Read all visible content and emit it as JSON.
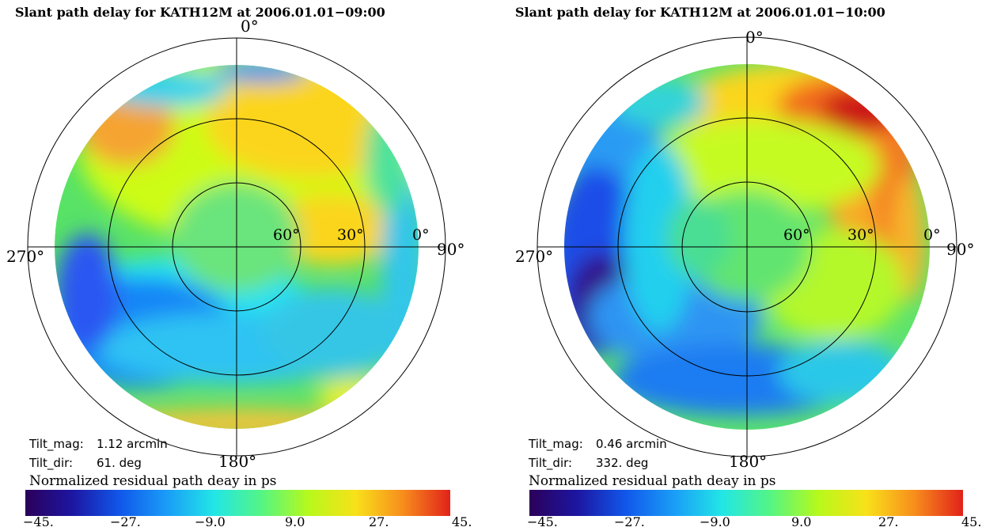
{
  "panels": [
    {
      "title": "Slant path delay for KATH12M   at 2006.01.01−09:00",
      "tilt_mag_label": "Tilt_mag:",
      "tilt_mag_value": "1.12 arcmin",
      "tilt_dir_label": "Tilt_dir:",
      "tilt_dir_value": "61.  deg",
      "colorbar_title": "Normalized residual path deay in ps"
    },
    {
      "title": "Slant path delay for KATH12M   at 2006.01.01−10:00",
      "tilt_mag_label": "Tilt_mag:",
      "tilt_mag_value": "0.46 arcmin",
      "tilt_dir_label": "Tilt_dir:",
      "tilt_dir_value": "332.  deg",
      "colorbar_title": "Normalized residual path deay in ps"
    }
  ],
  "chart_data": [
    {
      "type": "heatmap",
      "projection": "polar",
      "title": "Slant path delay for KATH12M   at 2006.01.01−09:00",
      "azimuth_labels": [
        "0°",
        "90°",
        "180°",
        "270°"
      ],
      "elevation_rings": [
        "60°",
        "30°",
        "0°"
      ],
      "colorbar": {
        "title": "Normalized residual path deay in ps",
        "range": [
          -45,
          45
        ],
        "tick_labels": [
          "−45.",
          "−27.",
          "−9.0",
          "9.0",
          "27.",
          "45."
        ],
        "colormap": "jet"
      },
      "tilt_mag_arcmin": 1.12,
      "tilt_dir_deg": 61
    },
    {
      "type": "heatmap",
      "projection": "polar",
      "title": "Slant path delay for KATH12M   at 2006.01.01−10:00",
      "azimuth_labels": [
        "0°",
        "90°",
        "180°",
        "270°"
      ],
      "elevation_rings": [
        "60°",
        "30°",
        "0°"
      ],
      "colorbar": {
        "title": "Normalized residual path deay in ps",
        "range": [
          -45,
          45
        ],
        "tick_labels": [
          "−45.",
          "−27.",
          "−9.0",
          "9.0",
          "27.",
          "45."
        ],
        "colormap": "jet"
      },
      "tilt_mag_arcmin": 0.46,
      "tilt_dir_deg": 332
    }
  ]
}
